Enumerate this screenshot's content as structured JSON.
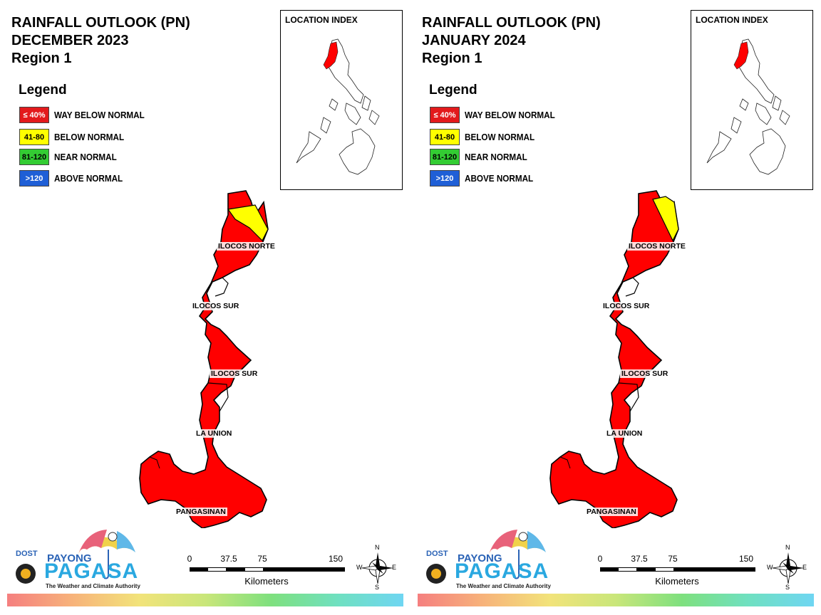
{
  "panels": [
    {
      "title_line1": "RAINFALL OUTLOOK (PN)",
      "title_line2": "DECEMBER 2023",
      "title_line3": "Region 1",
      "north_color": "#ffff00",
      "north_class": "BELOW NORMAL"
    },
    {
      "title_line1": "RAINFALL OUTLOOK (PN)",
      "title_line2": "JANUARY 2024",
      "title_line3": "Region 1",
      "north_color": "#ffff00",
      "north_class": "BELOW NORMAL"
    }
  ],
  "legend": {
    "title": "Legend",
    "items": [
      {
        "range": "≤ 40%",
        "label": "WAY BELOW NORMAL",
        "color": "#e31a1c",
        "text_color": "#ffffff"
      },
      {
        "range": "41-80",
        "label": "BELOW NORMAL",
        "color": "#ffff00",
        "text_color": "#000000"
      },
      {
        "range": "81-120",
        "label": "NEAR NORMAL",
        "color": "#33cc33",
        "text_color": "#000000"
      },
      {
        "range": ">120",
        "label": "ABOVE NORMAL",
        "color": "#1f5fd6",
        "text_color": "#ffffff"
      }
    ]
  },
  "location_index": {
    "title": "LOCATION INDEX"
  },
  "provinces": {
    "ilocos_norte": "ILOCOS NORTE",
    "ilocos_sur_1": "ILOCOS SUR",
    "ilocos_sur_2": "ILOCOS SUR",
    "la_union": "LA UNION",
    "pangasinan": "PANGASINAN"
  },
  "region_color": "#ff0000",
  "scale": {
    "ticks": [
      "0",
      "37.5",
      "75",
      "150"
    ],
    "unit": "Kilometers"
  },
  "compass": {
    "n": "N",
    "s": "S",
    "e": "E",
    "w": "W"
  },
  "logo": {
    "dost": "DOST",
    "payong": "PAYONG",
    "pagasa": "PAGASA",
    "tagline": "The Weather and Climate Authority"
  }
}
